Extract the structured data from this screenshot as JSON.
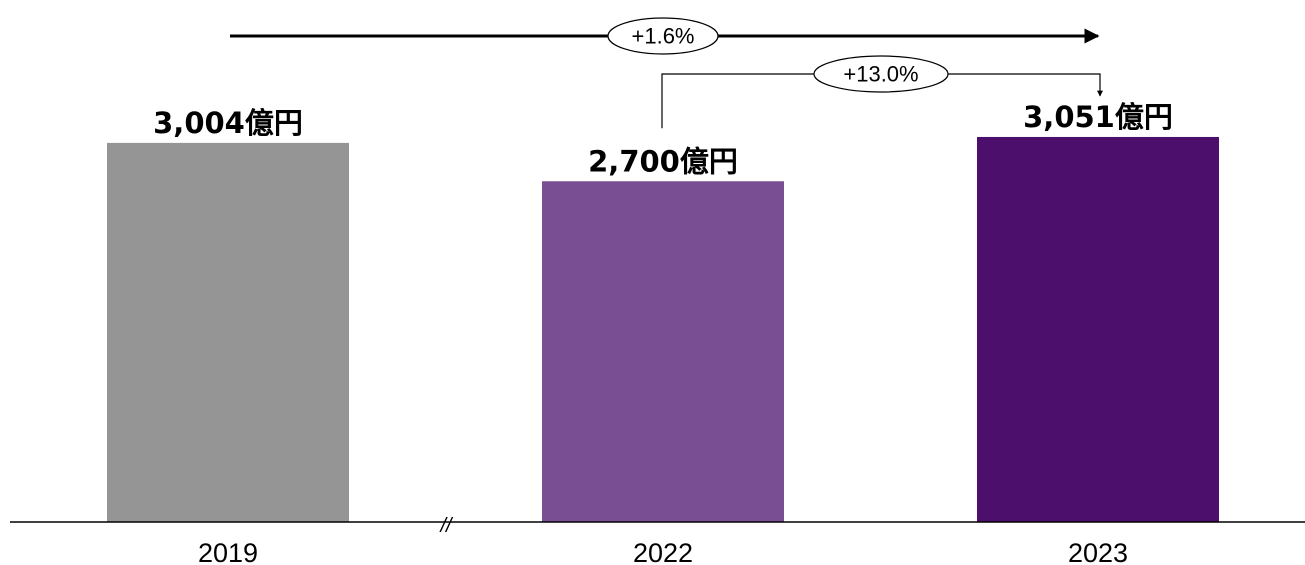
{
  "chart_data": {
    "type": "bar",
    "categories": [
      "2019",
      "2022",
      "2023"
    ],
    "values": [
      3004,
      2700,
      3051
    ],
    "value_labels": [
      "3,004億円",
      "2,700億円",
      "3,051億円"
    ],
    "unit": "億円",
    "colors": [
      "#959595",
      "#7a4e93",
      "#4c0f6b"
    ],
    "axis_break_label": "//",
    "annotations": [
      {
        "label": "+1.6%",
        "from": "2019",
        "to": "2023"
      },
      {
        "label": "+13.0%",
        "from": "2022",
        "to": "2023"
      }
    ]
  }
}
